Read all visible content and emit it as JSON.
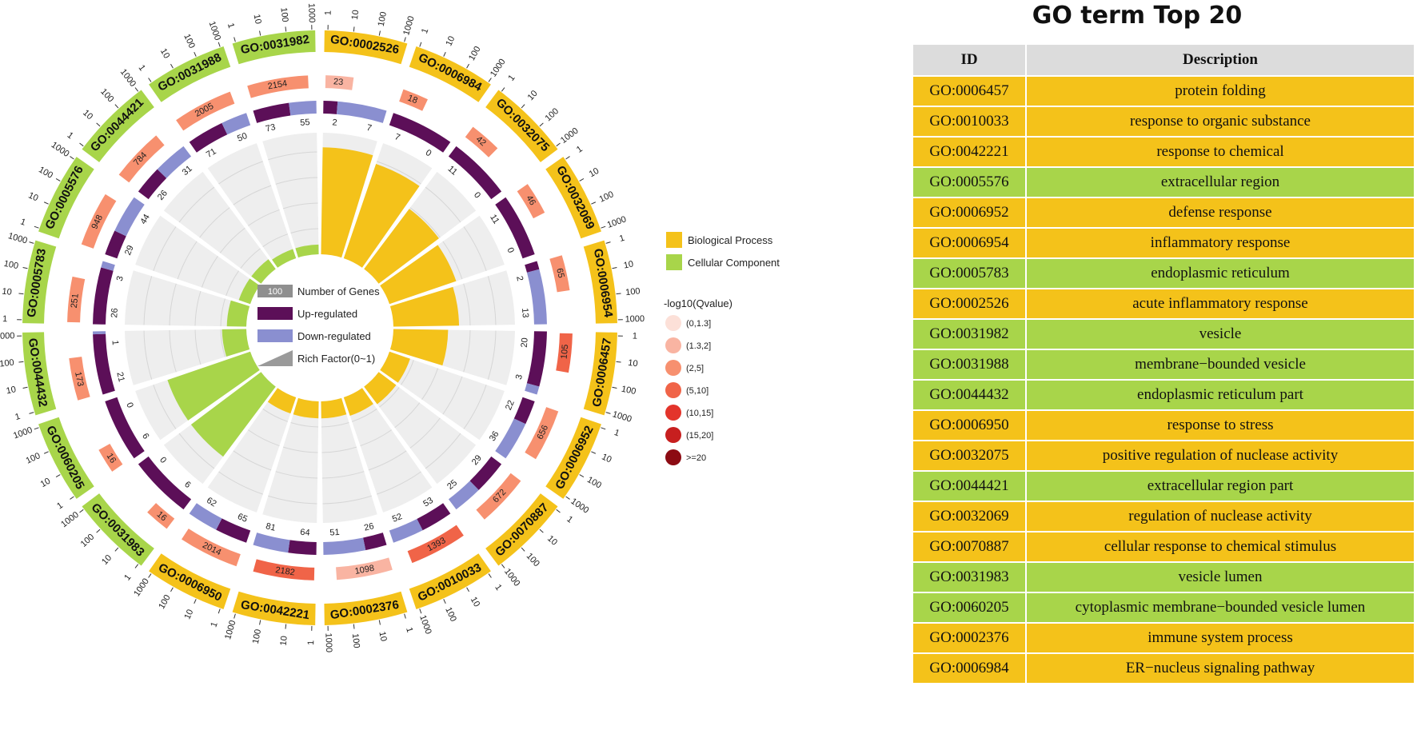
{
  "chart_data": {
    "type": "circos-go-enrichment",
    "title": "GO term Top 20",
    "categories": [
      {
        "name": "Biological Process",
        "color": "#F4C21A"
      },
      {
        "name": "Cellular Component",
        "color": "#A8D54A"
      }
    ],
    "axis_tick_labels": [
      "1",
      "10",
      "100",
      "1000"
    ],
    "track_legend": {
      "number_of_genes_label": "Number of Genes",
      "number_of_genes_example": "100",
      "up_label": "Up-regulated",
      "down_label": "Down-regulated",
      "rich_label": "Rich Factor(0~1)",
      "up_color": "#5c0f58",
      "down_color": "#8a8fd0"
    },
    "qvalue_legend": {
      "title": "-log10(Qvalue)",
      "bins": [
        {
          "label": "(0,1.3]",
          "color": "#fce0d8"
        },
        {
          "label": "(1.3,2]",
          "color": "#f9b4a2"
        },
        {
          "label": "(2,5]",
          "color": "#f7906f"
        },
        {
          "label": "(5,10]",
          "color": "#f06448"
        },
        {
          "label": "(10,15]",
          "color": "#e3342b"
        },
        {
          "label": "(15,20]",
          "color": "#c71f1f"
        },
        {
          "label": ">=20",
          "color": "#8c0b13"
        }
      ]
    },
    "terms": [
      {
        "id": "GO:0002526",
        "cat": "BP",
        "genes": 23,
        "qbin": 1,
        "up": 2,
        "down": 7,
        "rich": 0.88
      },
      {
        "id": "GO:0006984",
        "cat": "BP",
        "genes": 18,
        "qbin": 2,
        "up": 7,
        "down": 0,
        "rich": 0.82
      },
      {
        "id": "GO:0032075",
        "cat": "BP",
        "genes": 42,
        "qbin": 2,
        "up": 11,
        "down": 0,
        "rich": 0.62
      },
      {
        "id": "GO:0032069",
        "cat": "BP",
        "genes": 46,
        "qbin": 2,
        "up": 11,
        "down": 0,
        "rich": 0.58
      },
      {
        "id": "GO:0006954",
        "cat": "BP",
        "genes": 65,
        "qbin": 2,
        "up": 2,
        "down": 13,
        "rich": 0.54
      },
      {
        "id": "GO:0006457",
        "cat": "BP",
        "genes": 105,
        "qbin": 3,
        "up": 20,
        "down": 3,
        "rich": 0.45
      },
      {
        "id": "GO:0006952",
        "cat": "BP",
        "genes": 656,
        "qbin": 2,
        "up": 22,
        "down": 36,
        "rich": 0.18
      },
      {
        "id": "GO:0070887",
        "cat": "BP",
        "genes": 672,
        "qbin": 2,
        "up": 29,
        "down": 25,
        "rich": 0.18
      },
      {
        "id": "GO:0010033",
        "cat": "BP",
        "genes": 1393,
        "qbin": 3,
        "up": 53,
        "down": 52,
        "rich": 0.16
      },
      {
        "id": "GO:0002376",
        "cat": "BP",
        "genes": 1098,
        "qbin": 1,
        "up": 26,
        "down": 51,
        "rich": 0.14
      },
      {
        "id": "GO:0042221",
        "cat": "BP",
        "genes": 2182,
        "qbin": 3,
        "up": 64,
        "down": 81,
        "rich": 0.14
      },
      {
        "id": "GO:0006950",
        "cat": "BP",
        "genes": 2014,
        "qbin": 2,
        "up": 65,
        "down": 62,
        "rich": 0.14
      },
      {
        "id": "GO:0031983",
        "cat": "CC",
        "genes": 16,
        "qbin": 2,
        "up": 6,
        "down": 0,
        "rich": 0.72
      },
      {
        "id": "GO:0060205",
        "cat": "CC",
        "genes": 16,
        "qbin": 2,
        "up": 6,
        "down": 0,
        "rich": 0.72
      },
      {
        "id": "GO:0044432",
        "cat": "CC",
        "genes": 173,
        "qbin": 2,
        "up": 21,
        "down": 1,
        "rich": 0.2
      },
      {
        "id": "GO:0005783",
        "cat": "CC",
        "genes": 251,
        "qbin": 2,
        "up": 26,
        "down": 3,
        "rich": 0.16
      },
      {
        "id": "GO:0005576",
        "cat": "CC",
        "genes": 948,
        "qbin": 2,
        "up": 29,
        "down": 44,
        "rich": 0.1
      },
      {
        "id": "GO:0044421",
        "cat": "CC",
        "genes": 784,
        "qbin": 2,
        "up": 26,
        "down": 31,
        "rich": 0.1
      },
      {
        "id": "GO:0031988",
        "cat": "CC",
        "genes": 2005,
        "qbin": 2,
        "up": 71,
        "down": 50,
        "rich": 0.08
      },
      {
        "id": "GO:0031982",
        "cat": "CC",
        "genes": 2154,
        "qbin": 2,
        "up": 73,
        "down": 55,
        "rich": 0.08
      }
    ]
  },
  "table": {
    "title": "GO term Top 20",
    "headers": {
      "id": "ID",
      "description": "Description"
    },
    "rows": [
      {
        "id": "GO:0006457",
        "description": "protein folding",
        "cat": "bp"
      },
      {
        "id": "GO:0010033",
        "description": "response to organic substance",
        "cat": "bp"
      },
      {
        "id": "GO:0042221",
        "description": "response to chemical",
        "cat": "bp"
      },
      {
        "id": "GO:0005576",
        "description": "extracellular region",
        "cat": "cc"
      },
      {
        "id": "GO:0006952",
        "description": "defense response",
        "cat": "bp"
      },
      {
        "id": "GO:0006954",
        "description": "inflammatory response",
        "cat": "bp"
      },
      {
        "id": "GO:0005783",
        "description": "endoplasmic reticulum",
        "cat": "cc"
      },
      {
        "id": "GO:0002526",
        "description": "acute inflammatory response",
        "cat": "bp"
      },
      {
        "id": "GO:0031982",
        "description": "vesicle",
        "cat": "cc"
      },
      {
        "id": "GO:0031988",
        "description": "membrane−bounded vesicle",
        "cat": "cc"
      },
      {
        "id": "GO:0044432",
        "description": "endoplasmic reticulum part",
        "cat": "cc"
      },
      {
        "id": "GO:0006950",
        "description": "response to stress",
        "cat": "bp"
      },
      {
        "id": "GO:0032075",
        "description": "positive regulation of nuclease activity",
        "cat": "bp"
      },
      {
        "id": "GO:0044421",
        "description": "extracellular region part",
        "cat": "cc"
      },
      {
        "id": "GO:0032069",
        "description": "regulation of nuclease activity",
        "cat": "bp"
      },
      {
        "id": "GO:0070887",
        "description": "cellular response to chemical stimulus",
        "cat": "bp"
      },
      {
        "id": "GO:0031983",
        "description": "vesicle lumen",
        "cat": "cc"
      },
      {
        "id": "GO:0060205",
        "description": "cytoplasmic membrane−bounded vesicle lumen",
        "cat": "cc"
      },
      {
        "id": "GO:0002376",
        "description": "immune system process",
        "cat": "bp"
      },
      {
        "id": "GO:0006984",
        "description": "ER−nucleus signaling pathway",
        "cat": "bp"
      }
    ]
  }
}
